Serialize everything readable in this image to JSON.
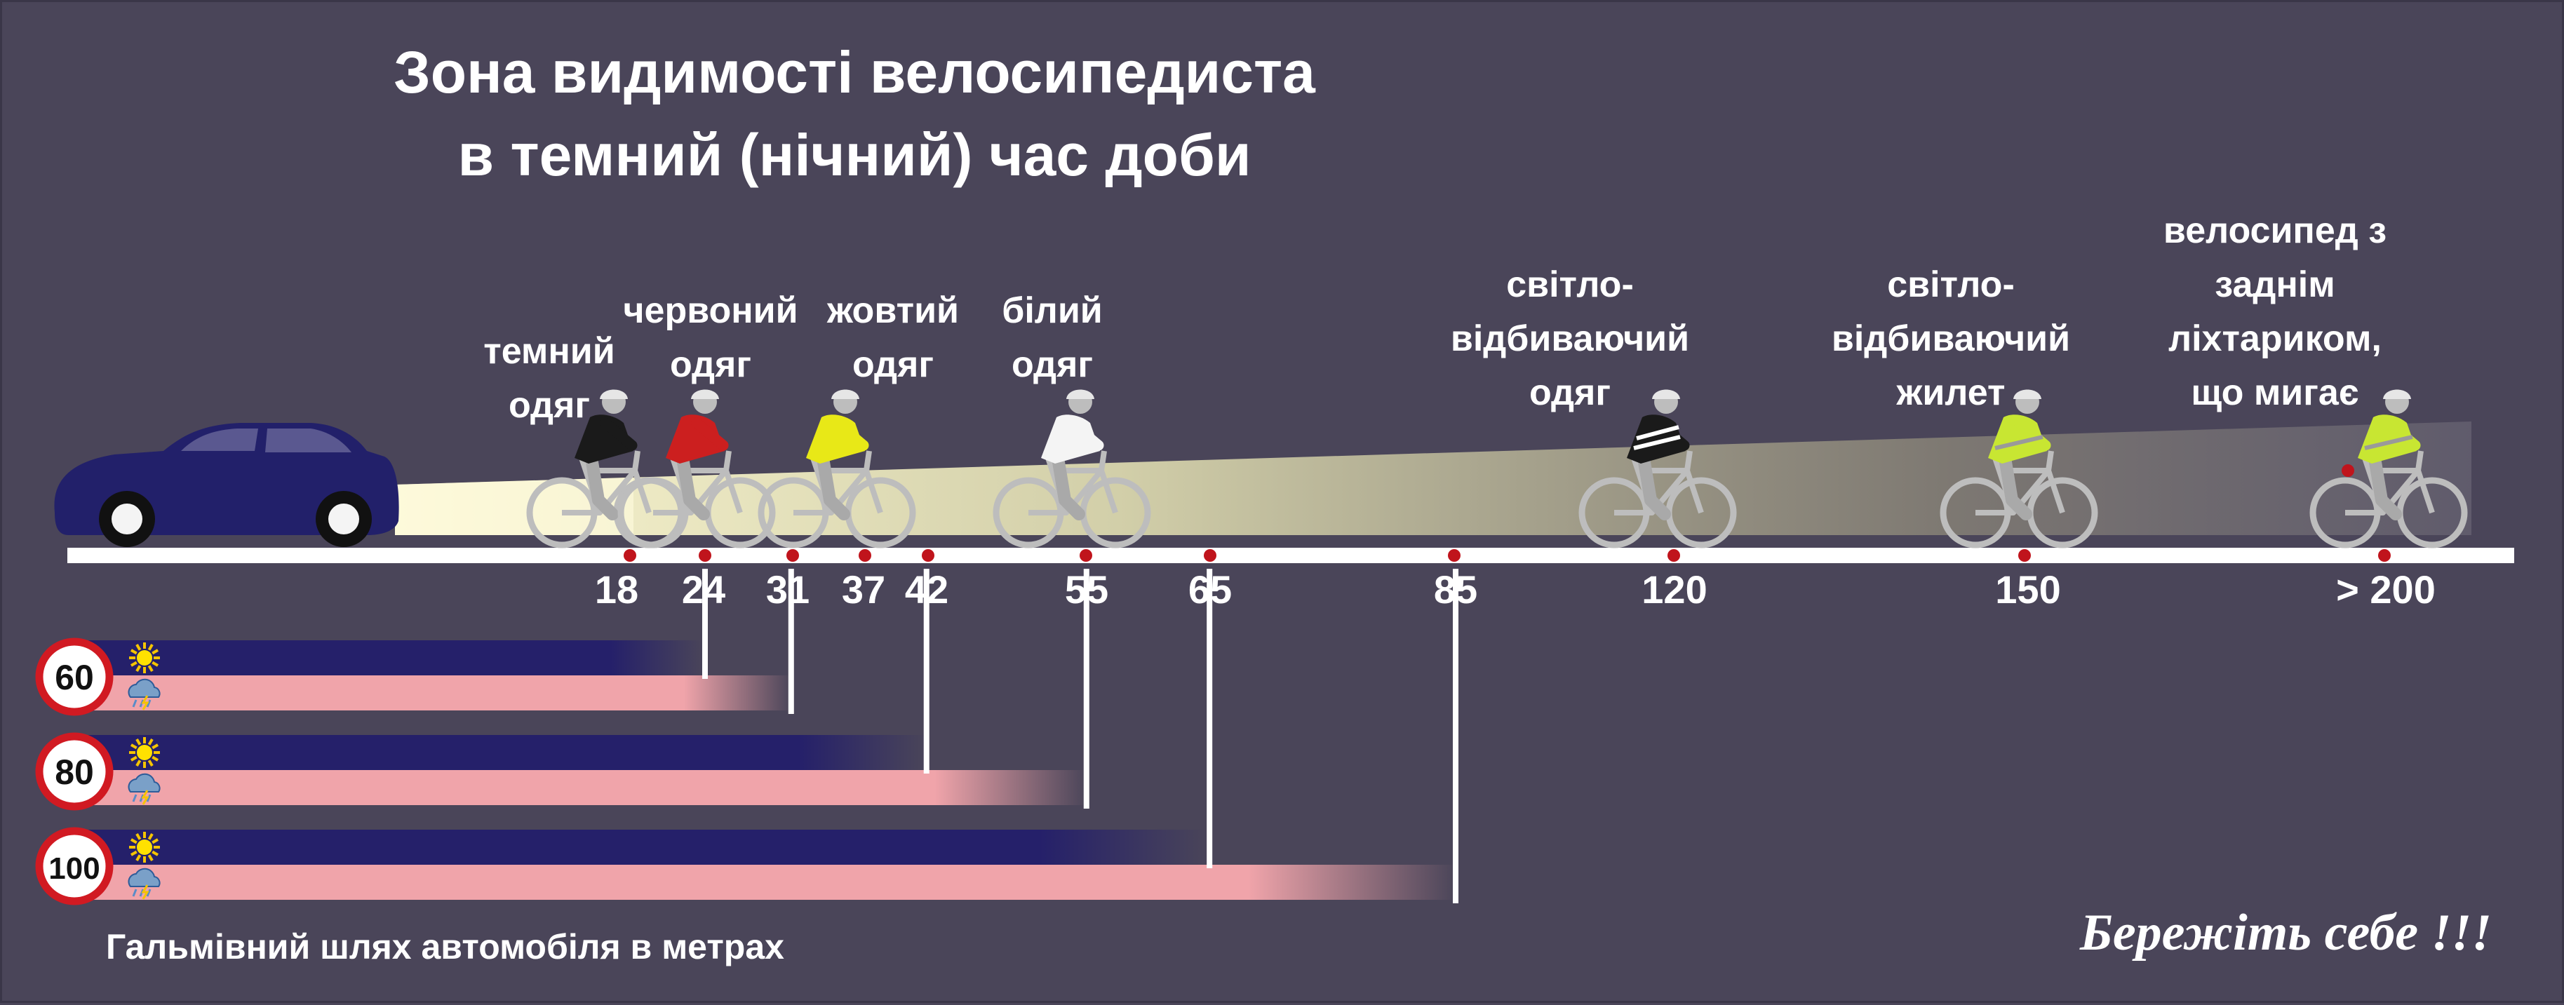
{
  "title": {
    "line1": "Зона видимості велосипедиста",
    "line2": "в темний (нічний) час доби"
  },
  "distances": [
    "18",
    "24",
    "31",
    "37",
    "42",
    "55",
    "65",
    "85",
    "120",
    "150",
    "> 200"
  ],
  "cyclists": [
    {
      "label": "темний одяг",
      "color": "#1a1a1a"
    },
    {
      "label": "червоний одяг",
      "color": "#cc1f1f"
    },
    {
      "label": "жовтий одяг",
      "color": "#e8e817"
    },
    {
      "label": "білий одяг",
      "color": "#f4f4f4"
    },
    {
      "label": "світло-відбиваючий одяг",
      "color": "#1a1a1a"
    },
    {
      "label": "світло-відбиваючий жилет",
      "color": "#c8e632"
    },
    {
      "label": "велосипед з заднім ліхтариком, що мигає",
      "color": "#c8e632"
    }
  ],
  "braking": [
    {
      "speed": "60",
      "dry": 24,
      "wet": 31
    },
    {
      "speed": "80",
      "dry": 42,
      "wet": 55
    },
    {
      "speed": "100",
      "dry": 65,
      "wet": 85
    }
  ],
  "icons": {
    "dry": "sun-icon",
    "wet": "rain-cloud-icon",
    "speed": "speed-limit-sign-icon"
  },
  "colors": {
    "background": "#4a4559",
    "dry_bar": "#25206a",
    "wet_bar": "#f0a4aa",
    "marker": "#c0141c",
    "car": "#22206a"
  },
  "footer": "Гальмівний шлях автомобіля в метрах",
  "slogan": "Бережіть себе !!!"
}
